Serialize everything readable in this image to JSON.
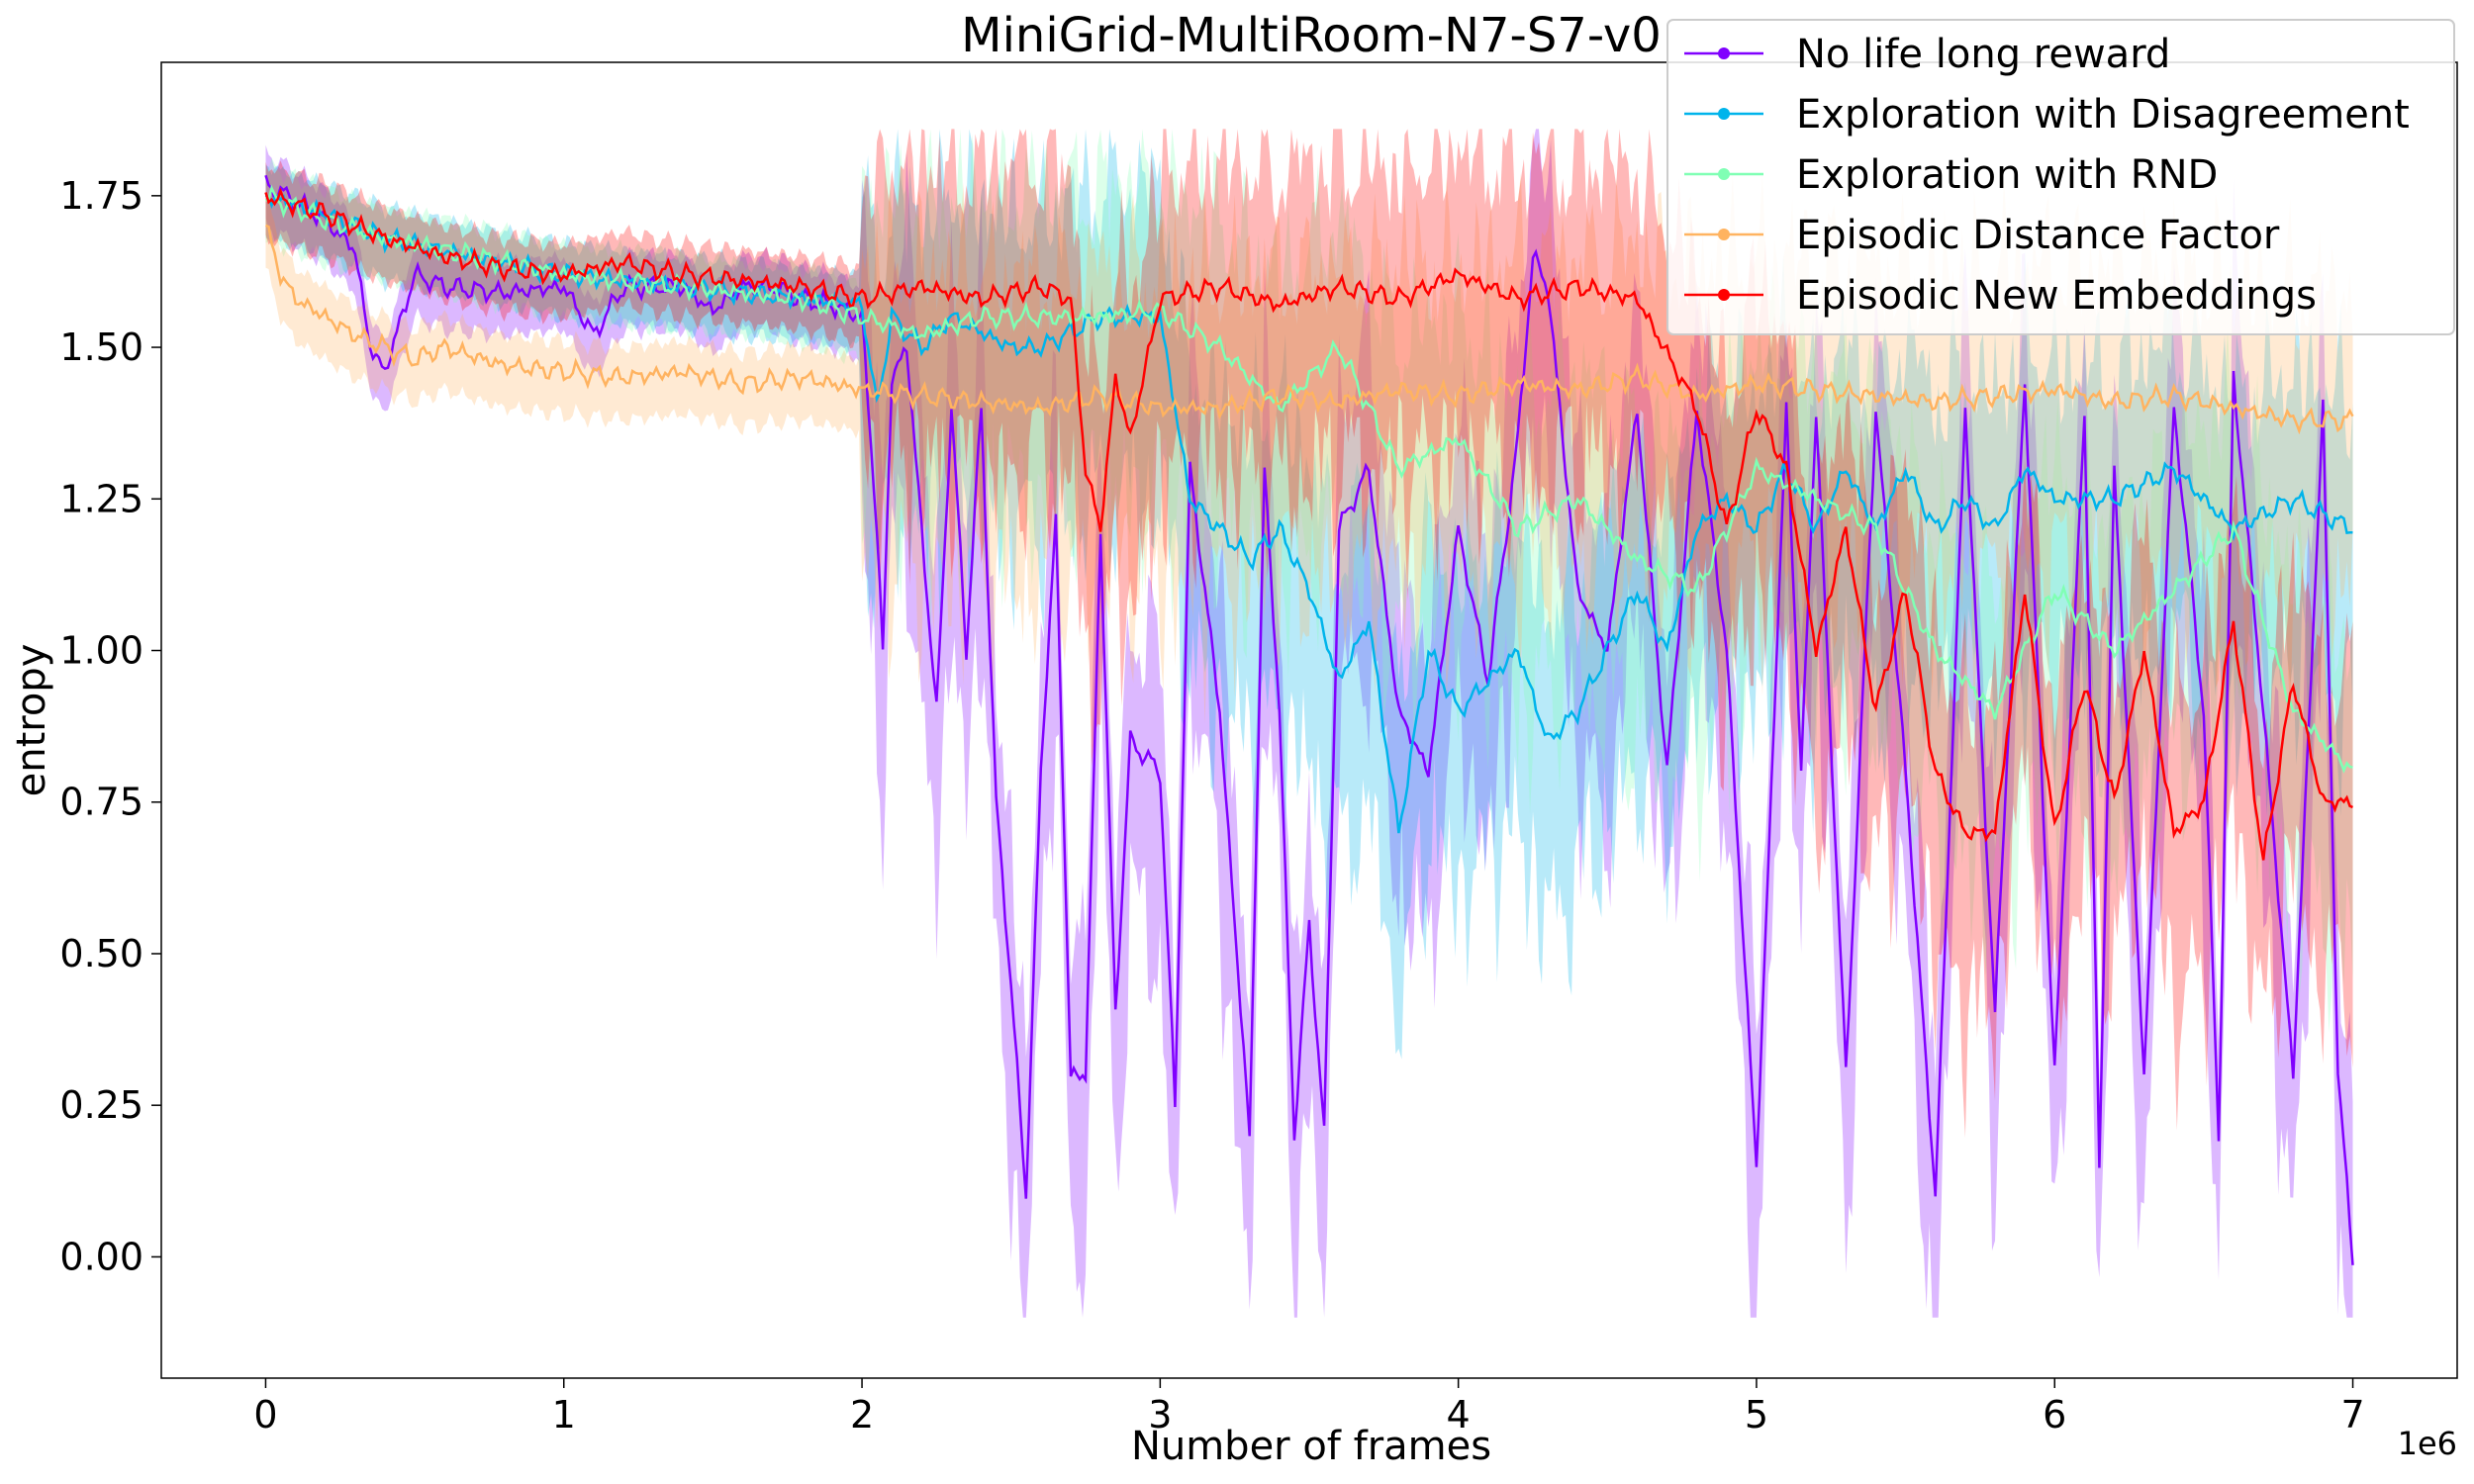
{
  "chart_data": {
    "type": "line",
    "title": "MiniGrid-MultiRoom-N7-S7-v0",
    "xlabel": "Number of frames",
    "ylabel": "entropy",
    "x_offset_label": "1e6",
    "xlim": [
      -0.35,
      7.35
    ],
    "ylim": [
      -0.2,
      1.97
    ],
    "x_ticks": [
      0,
      1,
      2,
      3,
      4,
      5,
      6,
      7
    ],
    "x_tick_labels": [
      "0",
      "1",
      "2",
      "3",
      "4",
      "5",
      "6",
      "7"
    ],
    "y_ticks": [
      0,
      0.25,
      0.5,
      0.75,
      1.0,
      1.25,
      1.5,
      1.75
    ],
    "y_tick_labels": [
      "0.00",
      "0.25",
      "0.50",
      "0.75",
      "1.00",
      "1.25",
      "1.50",
      "1.75"
    ],
    "legend_position": "top-right",
    "grid": false,
    "series": [
      {
        "name": "No life long reward",
        "color": "#8000ff",
        "points": [
          [
            0,
            1.77
          ],
          [
            0.2,
            1.71
          ],
          [
            0.3,
            1.66
          ],
          [
            0.35,
            1.5
          ],
          [
            0.4,
            1.46
          ],
          [
            0.5,
            1.62
          ],
          [
            0.6,
            1.6
          ],
          [
            0.8,
            1.59
          ],
          [
            1.0,
            1.6
          ],
          [
            1.1,
            1.52
          ],
          [
            1.2,
            1.6
          ],
          [
            1.4,
            1.6
          ],
          [
            1.5,
            1.56
          ],
          [
            1.6,
            1.6
          ],
          [
            1.7,
            1.6
          ],
          [
            1.8,
            1.58
          ],
          [
            1.9,
            1.57
          ],
          [
            2.0,
            1.55
          ],
          [
            2.05,
            1.2
          ],
          [
            2.07,
            1.0
          ],
          [
            2.1,
            1.45
          ],
          [
            2.15,
            1.5
          ],
          [
            2.2,
            1.2
          ],
          [
            2.25,
            0.9
          ],
          [
            2.3,
            1.4
          ],
          [
            2.35,
            1.0
          ],
          [
            2.4,
            1.4
          ],
          [
            2.45,
            0.75
          ],
          [
            2.5,
            0.45
          ],
          [
            2.55,
            0.1
          ],
          [
            2.6,
            0.8
          ],
          [
            2.65,
            1.22
          ],
          [
            2.7,
            0.3
          ],
          [
            2.75,
            0.3
          ],
          [
            2.8,
            1.2
          ],
          [
            2.85,
            0.4
          ],
          [
            2.9,
            0.85
          ],
          [
            3.0,
            0.8
          ],
          [
            3.05,
            0.25
          ],
          [
            3.1,
            1.3
          ],
          [
            3.2,
            0.9
          ],
          [
            3.3,
            0.2
          ],
          [
            3.35,
            1.3
          ],
          [
            3.4,
            0.9
          ],
          [
            3.45,
            0.2
          ],
          [
            3.5,
            0.55
          ],
          [
            3.55,
            0.2
          ],
          [
            3.6,
            1.2
          ],
          [
            3.7,
            1.3
          ],
          [
            3.8,
            0.9
          ],
          [
            3.9,
            0.8
          ],
          [
            4.0,
            1.2
          ],
          [
            4.1,
            0.95
          ],
          [
            4.2,
            1.35
          ],
          [
            4.25,
            1.65
          ],
          [
            4.3,
            1.6
          ],
          [
            4.4,
            1.1
          ],
          [
            4.5,
            1.0
          ],
          [
            4.6,
            1.4
          ],
          [
            4.7,
            0.8
          ],
          [
            4.8,
            1.4
          ],
          [
            4.9,
            1.0
          ],
          [
            5.0,
            0.15
          ],
          [
            5.1,
            1.4
          ],
          [
            5.15,
            0.8
          ],
          [
            5.2,
            1.4
          ],
          [
            5.3,
            0.3
          ],
          [
            5.4,
            1.4
          ],
          [
            5.5,
            0.8
          ],
          [
            5.6,
            0.1
          ],
          [
            5.7,
            1.4
          ],
          [
            5.8,
            0.4
          ],
          [
            5.9,
            1.45
          ],
          [
            6.0,
            0.3
          ],
          [
            6.1,
            1.4
          ],
          [
            6.15,
            0.15
          ],
          [
            6.2,
            1.3
          ],
          [
            6.3,
            0.3
          ],
          [
            6.4,
            1.4
          ],
          [
            6.5,
            0.9
          ],
          [
            6.55,
            0.2
          ],
          [
            6.6,
            1.45
          ],
          [
            6.7,
            0.9
          ],
          [
            6.8,
            0.3
          ],
          [
            6.9,
            1.4
          ],
          [
            6.95,
            0.3
          ],
          [
            7.0,
            0.0
          ]
        ]
      },
      {
        "name": "Exploration with Disagreement",
        "color": "#00b4eb",
        "points": [
          [
            0,
            1.75
          ],
          [
            0.2,
            1.72
          ],
          [
            0.4,
            1.68
          ],
          [
            0.6,
            1.66
          ],
          [
            0.8,
            1.64
          ],
          [
            1.0,
            1.62
          ],
          [
            1.2,
            1.61
          ],
          [
            1.4,
            1.6
          ],
          [
            1.6,
            1.59
          ],
          [
            1.8,
            1.58
          ],
          [
            2.0,
            1.57
          ],
          [
            2.05,
            1.4
          ],
          [
            2.1,
            1.55
          ],
          [
            2.2,
            1.5
          ],
          [
            2.3,
            1.55
          ],
          [
            2.5,
            1.5
          ],
          [
            2.6,
            1.5
          ],
          [
            2.8,
            1.55
          ],
          [
            3.0,
            1.55
          ],
          [
            3.1,
            1.25
          ],
          [
            3.2,
            1.2
          ],
          [
            3.3,
            1.15
          ],
          [
            3.4,
            1.2
          ],
          [
            3.5,
            1.1
          ],
          [
            3.6,
            0.95
          ],
          [
            3.7,
            1.05
          ],
          [
            3.8,
            0.7
          ],
          [
            3.9,
            1.0
          ],
          [
            4.0,
            0.9
          ],
          [
            4.1,
            0.95
          ],
          [
            4.2,
            1.0
          ],
          [
            4.3,
            0.85
          ],
          [
            4.4,
            0.9
          ],
          [
            4.5,
            1.0
          ],
          [
            4.6,
            1.1
          ],
          [
            4.7,
            1.0
          ],
          [
            4.8,
            1.2
          ],
          [
            4.9,
            1.25
          ],
          [
            5.0,
            1.2
          ],
          [
            5.1,
            1.3
          ],
          [
            5.2,
            1.2
          ],
          [
            5.3,
            1.3
          ],
          [
            5.4,
            1.2
          ],
          [
            5.5,
            1.3
          ],
          [
            5.6,
            1.2
          ],
          [
            5.7,
            1.25
          ],
          [
            5.8,
            1.2
          ],
          [
            5.9,
            1.3
          ],
          [
            6.0,
            1.25
          ],
          [
            6.2,
            1.25
          ],
          [
            6.4,
            1.3
          ],
          [
            6.6,
            1.2
          ],
          [
            6.8,
            1.25
          ],
          [
            7.0,
            1.2
          ]
        ]
      },
      {
        "name": "Exploration with RND",
        "color": "#80ffb4",
        "points": [
          [
            0,
            1.75
          ],
          [
            0.2,
            1.71
          ],
          [
            0.4,
            1.68
          ],
          [
            0.6,
            1.66
          ],
          [
            0.8,
            1.64
          ],
          [
            1.0,
            1.62
          ],
          [
            1.2,
            1.61
          ],
          [
            1.4,
            1.6
          ],
          [
            1.6,
            1.59
          ],
          [
            1.8,
            1.58
          ],
          [
            2.0,
            1.55
          ],
          [
            2.2,
            1.52
          ],
          [
            2.4,
            1.55
          ],
          [
            2.6,
            1.55
          ],
          [
            2.8,
            1.55
          ],
          [
            3.0,
            1.56
          ],
          [
            3.2,
            1.5
          ],
          [
            3.4,
            1.4
          ],
          [
            3.6,
            1.5
          ],
          [
            3.8,
            1.3
          ],
          [
            4.0,
            1.35
          ],
          [
            4.2,
            1.2
          ],
          [
            4.4,
            1.25
          ],
          [
            4.6,
            1.15
          ],
          [
            4.8,
            1.1
          ],
          [
            5.0,
            1.3
          ],
          [
            5.2,
            1.25
          ],
          [
            5.4,
            1.2
          ],
          [
            5.6,
            1.0
          ],
          [
            5.8,
            0.9
          ],
          [
            6.0,
            1.1
          ],
          [
            6.2,
            1.0
          ],
          [
            6.4,
            1.1
          ],
          [
            6.6,
            1.2
          ],
          [
            6.8,
            0.9
          ],
          [
            7.0,
            0.8
          ]
        ]
      },
      {
        "name": "Episodic Distance Factor",
        "color": "#ffb360",
        "points": [
          [
            0,
            1.7
          ],
          [
            0.05,
            1.62
          ],
          [
            0.1,
            1.58
          ],
          [
            0.2,
            1.55
          ],
          [
            0.3,
            1.52
          ],
          [
            0.4,
            1.5
          ],
          [
            0.5,
            1.48
          ],
          [
            0.6,
            1.5
          ],
          [
            0.8,
            1.47
          ],
          [
            1.0,
            1.46
          ],
          [
            1.2,
            1.45
          ],
          [
            1.4,
            1.46
          ],
          [
            1.6,
            1.44
          ],
          [
            1.8,
            1.45
          ],
          [
            2.0,
            1.43
          ],
          [
            2.2,
            1.42
          ],
          [
            2.4,
            1.41
          ],
          [
            2.6,
            1.4
          ],
          [
            2.8,
            1.42
          ],
          [
            3.0,
            1.4
          ],
          [
            3.2,
            1.4
          ],
          [
            3.4,
            1.42
          ],
          [
            3.6,
            1.41
          ],
          [
            3.8,
            1.43
          ],
          [
            4.0,
            1.42
          ],
          [
            4.2,
            1.44
          ],
          [
            4.4,
            1.43
          ],
          [
            4.6,
            1.45
          ],
          [
            4.8,
            1.42
          ],
          [
            5.0,
            1.44
          ],
          [
            5.2,
            1.43
          ],
          [
            5.4,
            1.42
          ],
          [
            5.6,
            1.41
          ],
          [
            5.8,
            1.42
          ],
          [
            6.0,
            1.43
          ],
          [
            6.2,
            1.41
          ],
          [
            6.4,
            1.42
          ],
          [
            6.6,
            1.4
          ],
          [
            6.8,
            1.38
          ],
          [
            7.0,
            1.38
          ]
        ]
      },
      {
        "name": "Episodic New Embeddings",
        "color": "#ff0000",
        "points": [
          [
            0,
            1.75
          ],
          [
            0.2,
            1.72
          ],
          [
            0.4,
            1.68
          ],
          [
            0.6,
            1.65
          ],
          [
            0.8,
            1.63
          ],
          [
            1.0,
            1.62
          ],
          [
            1.2,
            1.64
          ],
          [
            1.4,
            1.62
          ],
          [
            1.6,
            1.61
          ],
          [
            1.8,
            1.6
          ],
          [
            2.0,
            1.58
          ],
          [
            2.2,
            1.6
          ],
          [
            2.4,
            1.58
          ],
          [
            2.6,
            1.6
          ],
          [
            2.7,
            1.58
          ],
          [
            2.75,
            1.3
          ],
          [
            2.8,
            1.2
          ],
          [
            2.85,
            1.45
          ],
          [
            2.9,
            1.35
          ],
          [
            3.0,
            1.58
          ],
          [
            3.2,
            1.6
          ],
          [
            3.4,
            1.57
          ],
          [
            3.6,
            1.6
          ],
          [
            3.8,
            1.58
          ],
          [
            4.0,
            1.62
          ],
          [
            4.2,
            1.58
          ],
          [
            4.4,
            1.6
          ],
          [
            4.6,
            1.58
          ],
          [
            4.8,
            1.4
          ],
          [
            4.9,
            1.2
          ],
          [
            5.0,
            1.4
          ],
          [
            5.1,
            1.3
          ],
          [
            5.2,
            1.0
          ],
          [
            5.3,
            1.2
          ],
          [
            5.4,
            0.9
          ],
          [
            5.5,
            1.1
          ],
          [
            5.6,
            0.8
          ],
          [
            5.7,
            0.7
          ],
          [
            5.8,
            0.7
          ],
          [
            5.9,
            1.1
          ],
          [
            6.0,
            0.7
          ],
          [
            6.1,
            0.95
          ],
          [
            6.2,
            0.75
          ],
          [
            6.3,
            1.0
          ],
          [
            6.4,
            0.7
          ],
          [
            6.5,
            0.75
          ],
          [
            6.6,
            1.05
          ],
          [
            6.7,
            0.65
          ],
          [
            6.8,
            0.95
          ],
          [
            6.9,
            0.75
          ],
          [
            7.0,
            0.75
          ]
        ]
      }
    ]
  }
}
